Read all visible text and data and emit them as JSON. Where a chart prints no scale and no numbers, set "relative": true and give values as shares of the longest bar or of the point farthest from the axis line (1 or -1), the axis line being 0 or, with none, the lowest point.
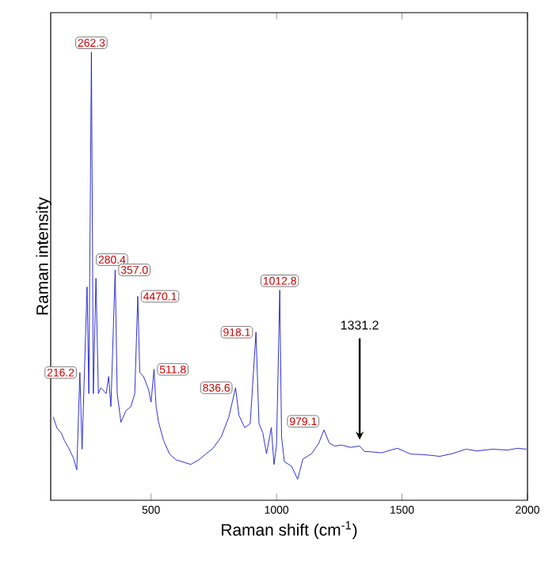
{
  "chart_data": {
    "type": "line",
    "xlabel": "Raman shift (cm$^{-1}$)",
    "ylabel": "Raman intensity",
    "relative": true,
    "xlim": [
      100,
      2000
    ],
    "xticks": [
      500,
      1000,
      1500,
      2000
    ],
    "grid": false,
    "marker": "none",
    "line_style": "solid",
    "x": [
      110,
      125,
      141,
      155,
      172,
      190,
      204,
      216.2,
      225,
      245,
      252,
      262.3,
      270,
      280.4,
      290,
      300,
      321,
      331,
      340,
      357.0,
      365,
      380,
      400,
      420,
      435,
      447,
      455,
      470,
      490,
      500,
      511.8,
      520,
      530,
      550,
      574,
      600,
      630,
      658,
      690,
      720,
      747,
      780,
      810,
      836.6,
      850,
      873,
      895,
      918.1,
      930,
      945,
      960,
      979.1,
      990,
      1000,
      1012.8,
      1020,
      1031,
      1060,
      1084,
      1105,
      1140,
      1168,
      1189,
      1210,
      1231,
      1260,
      1294,
      1331.2,
      1350,
      1377,
      1420,
      1455,
      1482,
      1510,
      1535,
      1580,
      1620,
      1650,
      1700,
      1755,
      1800,
      1860,
      1920,
      1960,
      1996
    ],
    "series": [
      {
        "color": "#1a1acc",
        "values": [
          0.186,
          0.161,
          0.151,
          0.133,
          0.116,
          0.095,
          0.068,
          0.285,
          0.114,
          0.476,
          0.238,
          1.0,
          0.238,
          0.495,
          0.238,
          0.251,
          0.238,
          0.276,
          0.209,
          0.514,
          0.238,
          0.174,
          0.2,
          0.209,
          0.238,
          0.455,
          0.285,
          0.276,
          0.247,
          0.219,
          0.292,
          0.209,
          0.174,
          0.133,
          0.103,
          0.09,
          0.085,
          0.08,
          0.09,
          0.104,
          0.116,
          0.142,
          0.186,
          0.251,
          0.19,
          0.162,
          0.171,
          0.375,
          0.171,
          0.151,
          0.104,
          0.162,
          0.08,
          0.123,
          0.469,
          0.142,
          0.086,
          0.076,
          0.047,
          0.092,
          0.104,
          0.127,
          0.157,
          0.128,
          0.121,
          0.123,
          0.118,
          0.121,
          0.109,
          0.108,
          0.106,
          0.112,
          0.116,
          0.109,
          0.103,
          0.102,
          0.1,
          0.098,
          0.104,
          0.114,
          0.11,
          0.114,
          0.112,
          0.116,
          0.114
        ]
      }
    ],
    "annotations": [
      {
        "text": "216.2",
        "x": 216.2,
        "y": 0.285
      },
      {
        "text": "262.3",
        "x": 262.3,
        "y": 1.0
      },
      {
        "text": "280.4",
        "x": 280.4,
        "y": 0.495
      },
      {
        "text": "357.0",
        "x": 357.0,
        "y": 0.514
      },
      {
        "text": "4470.1",
        "x": 447,
        "y": 0.455
      },
      {
        "text": "511.8",
        "x": 511.8,
        "y": 0.292
      },
      {
        "text": "836.6",
        "x": 836.6,
        "y": 0.251
      },
      {
        "text": "918.1",
        "x": 918.1,
        "y": 0.375
      },
      {
        "text": "979.1",
        "x": 979.1,
        "y": 0.162
      },
      {
        "text": "1012.8",
        "x": 1012.8,
        "y": 0.469
      },
      {
        "text": "1331.2",
        "x": 1331.2,
        "y": 0.121
      }
    ]
  }
}
